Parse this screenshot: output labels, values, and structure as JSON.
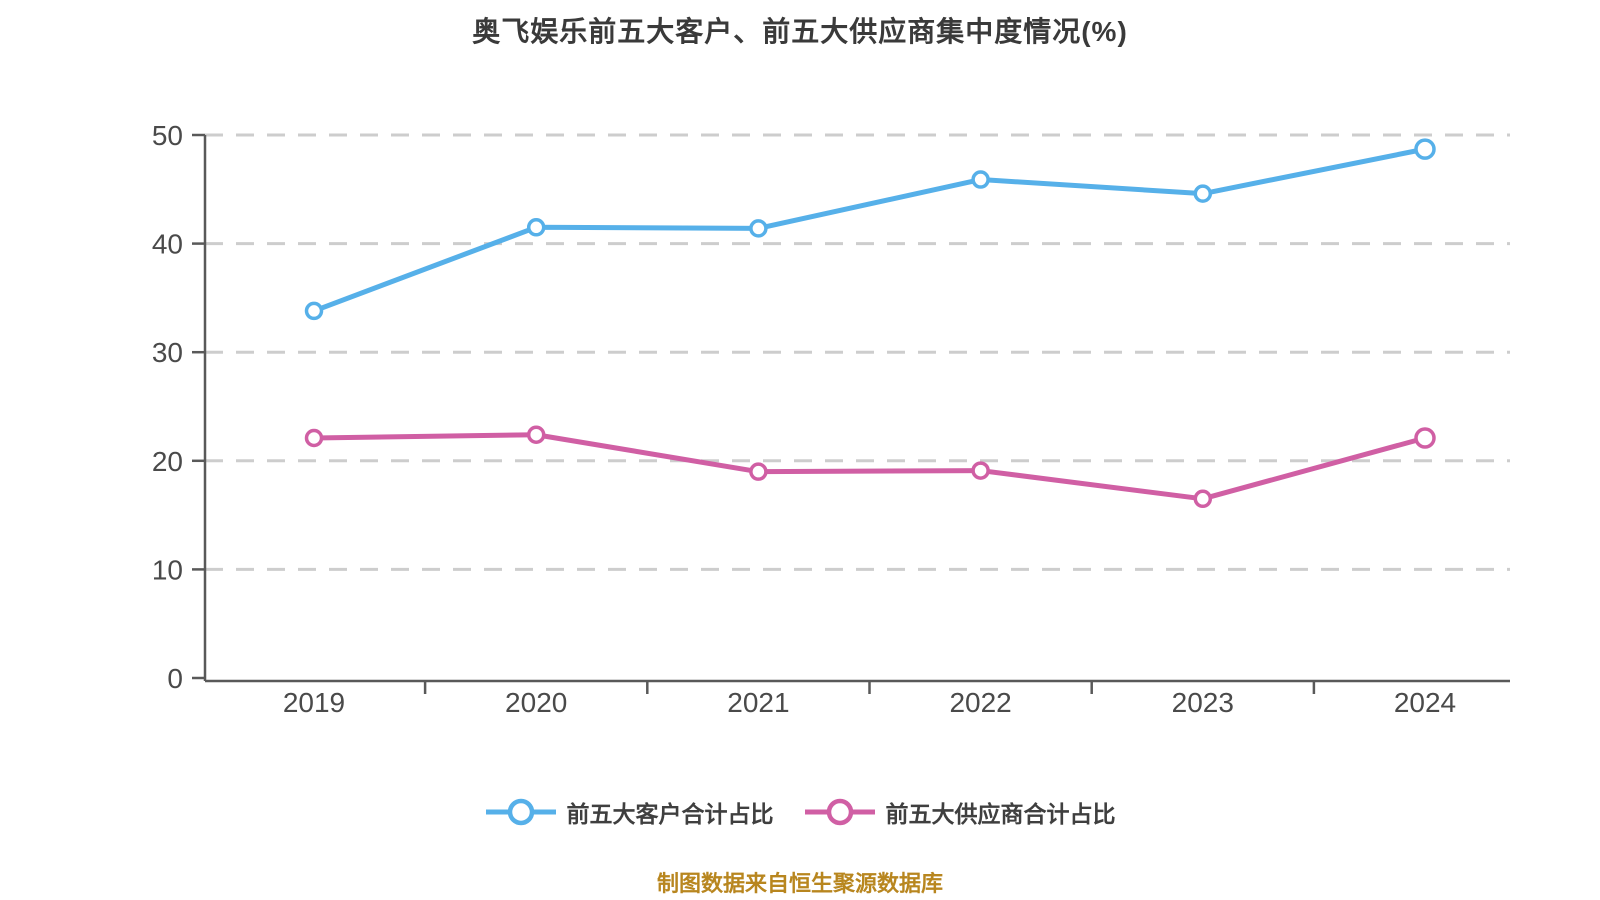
{
  "title": "奥飞娱乐前五大客户、前五大供应商集中度情况(%)",
  "footer": "制图数据来自恒生聚源数据库",
  "chart_data": {
    "type": "line",
    "title": "奥飞娱乐前五大客户、前五大供应商集中度情况(%)",
    "categories": [
      "2019",
      "2020",
      "2021",
      "2022",
      "2023",
      "2024"
    ],
    "series": [
      {
        "name": "前五大客户合计占比",
        "color": "#56b0e9",
        "marker": "open-circle",
        "values": [
          33.8,
          41.5,
          41.4,
          45.9,
          44.6,
          48.7
        ]
      },
      {
        "name": "前五大供应商合计占比",
        "color": "#d05fa4",
        "marker": "open-circle",
        "values": [
          22.1,
          22.4,
          19.0,
          19.1,
          16.5,
          22.1
        ]
      }
    ],
    "xlabel": "",
    "ylabel": "",
    "ylim": [
      0,
      50
    ],
    "yticks": [
      0,
      10,
      20,
      30,
      40,
      50
    ],
    "grid": "horizontal-dashed",
    "legend_position": "bottom",
    "style": {
      "background": "#ffffff",
      "grid_color": "#cdcdcd",
      "axis_color": "#595959",
      "tick_label_color": "#4a4a4a",
      "title_color": "#3a3a3a",
      "legend_text_color": "#3f3f3f",
      "footer_color": "#b8861f"
    }
  }
}
